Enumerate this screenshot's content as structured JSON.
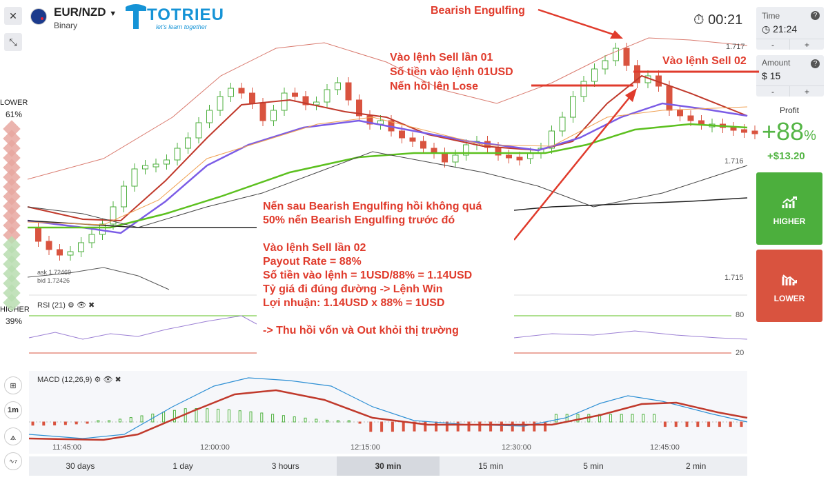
{
  "header": {
    "pair": "EUR/NZD",
    "type": "Binary",
    "logo_text": "TOTRIEU",
    "logo_tagline": "let's learn together",
    "timer": "00:21"
  },
  "right_panel": {
    "time_label": "Time",
    "time_value": "21:24",
    "amount_label": "Amount",
    "amount_value": "15",
    "currency": "$",
    "minus": "-",
    "plus": "+",
    "help": "?",
    "profit_label": "Profit",
    "profit_pct": "+88",
    "profit_pct_sign": "%",
    "profit_amount": "+$13.20",
    "higher_label": "HIGHER",
    "lower_label": "LOWER",
    "higher_color": "#4caf3d",
    "lower_color": "#d9533f"
  },
  "sentiment": {
    "lower_label": "LOWER",
    "lower_pct": "61%",
    "higher_label": "HIGHER",
    "higher_pct": "39%"
  },
  "chart": {
    "ask": "ask 1.72469",
    "bid": "bid 1.72426",
    "price_labels": [
      "1.717",
      "1.716",
      "1.715"
    ],
    "rsi_title": "RSI (21)",
    "rsi_levels": [
      "80",
      "20"
    ],
    "macd_title": "MACD (12,26,9)",
    "time_labels": [
      "11:45:00",
      "12:00:00",
      "12:15:00",
      "12:30:00",
      "12:45:00"
    ]
  },
  "tools": {
    "interval": "1m",
    "drawings_count": "7"
  },
  "timeframes": [
    {
      "label": "30 days",
      "active": false
    },
    {
      "label": "1 day",
      "active": false
    },
    {
      "label": "3 hours",
      "active": false
    },
    {
      "label": "30 min",
      "active": true
    },
    {
      "label": "15 min",
      "active": false
    },
    {
      "label": "5 min",
      "active": false
    },
    {
      "label": "2 min",
      "active": false
    }
  ],
  "annotations": {
    "bearish_engulfing": "Bearish Engulfing",
    "sell_01": [
      "Vào lệnh Sell lần 01",
      "Số tiền vào lệnh 01USD",
      "Nến hồi lên Lose"
    ],
    "sell_02": "Vào lệnh Sell 02",
    "note": [
      "Nến sau Bearish Engulfing hồi không quá",
      "50% nến Bearish Engulfing trước đó",
      "",
      "Vào lệnh Sell lần 02",
      "Payout Rate = 88%",
      "Số tiền vào lệnh = 1USD/88% = 1.14USD",
      "Tỷ giá đi đúng đường -> Lệnh Win",
      "Lợi nhuận: 1.14USD x 88% = 1USD",
      "",
      "-> Thu hồi vốn và Out khỏi thị trường"
    ]
  },
  "colors": {
    "bull": "#4caf3d",
    "bear": "#d9533f",
    "annotation": "#e03b2c",
    "ma_red": "#c0392b",
    "ma_purple": "#7b5ce6",
    "ma_green": "#5cc01f",
    "ma_orange": "#f0a050"
  }
}
